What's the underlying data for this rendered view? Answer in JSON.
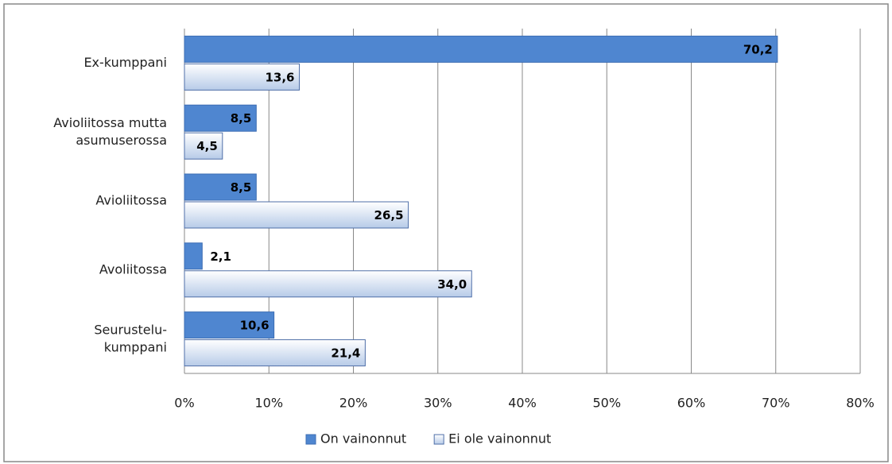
{
  "chart_data": {
    "type": "bar",
    "orientation": "horizontal",
    "categories": [
      "Ex-kumppani",
      "Avioliitossa mutta asumuserossa",
      "Avioliitossa",
      "Avoliitossa",
      "Seurustelu-kumppani"
    ],
    "series": [
      {
        "name": "On vainonnut",
        "color": "#4f86d0",
        "values": [
          70.2,
          8.5,
          8.5,
          2.1,
          10.6
        ],
        "value_labels": [
          "70,2",
          "8,5",
          "8,5",
          "2,1",
          "10,6"
        ]
      },
      {
        "name": "Ei ole vainonnut",
        "color": "#c6d7ee",
        "values": [
          13.6,
          4.5,
          26.5,
          34.0,
          21.4
        ],
        "value_labels": [
          "13,6",
          "4,5",
          "26,5",
          "34,0",
          "21,4"
        ]
      }
    ],
    "xlim": [
      0,
      80
    ],
    "xticks": [
      {
        "value": 0,
        "label": "0%"
      },
      {
        "value": 10,
        "label": "10%"
      },
      {
        "value": 20,
        "label": "20%"
      },
      {
        "value": 30,
        "label": "30%"
      },
      {
        "value": 40,
        "label": "40%"
      },
      {
        "value": 50,
        "label": "50%"
      },
      {
        "value": 60,
        "label": "60%"
      },
      {
        "value": 70,
        "label": "70%"
      },
      {
        "value": 80,
        "label": "80%"
      }
    ],
    "grid": true,
    "legend": "bottom"
  }
}
